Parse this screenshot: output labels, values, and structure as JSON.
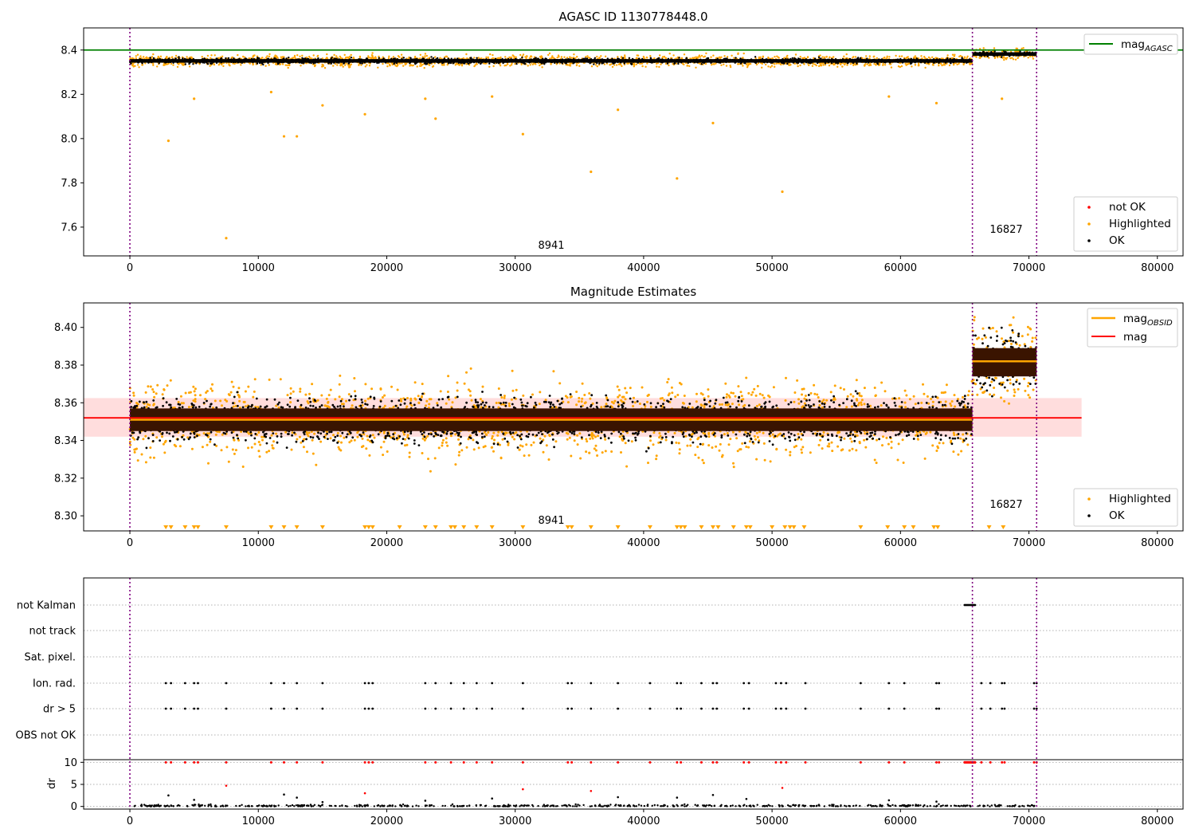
{
  "chart_data": [
    {
      "type": "scatter",
      "title": "AGASC ID 1130778448.0",
      "xlim": [
        -3600,
        82000
      ],
      "ylim": [
        7.47,
        8.5
      ],
      "xticks": [
        0,
        10000,
        20000,
        30000,
        40000,
        50000,
        60000,
        70000,
        80000
      ],
      "yticks": [
        7.6,
        7.8,
        8.0,
        8.2,
        8.4
      ],
      "vlines": [
        0,
        65600,
        70600
      ],
      "mag_agasc": 8.4,
      "segments": [
        {
          "label": "8941",
          "x_start": 0,
          "x_end": 65600,
          "mean": 8.351
        },
        {
          "label": "16827",
          "x_start": 65600,
          "x_end": 70600,
          "mean": 8.382
        }
      ],
      "highlighted_outliers": [
        {
          "x": 3000,
          "y": 7.99
        },
        {
          "x": 5000,
          "y": 8.18
        },
        {
          "x": 7500,
          "y": 7.55
        },
        {
          "x": 11000,
          "y": 8.21
        },
        {
          "x": 12000,
          "y": 8.01
        },
        {
          "x": 13000,
          "y": 8.01
        },
        {
          "x": 15000,
          "y": 8.15
        },
        {
          "x": 18300,
          "y": 8.11
        },
        {
          "x": 23000,
          "y": 8.18
        },
        {
          "x": 23800,
          "y": 8.09
        },
        {
          "x": 28200,
          "y": 8.19
        },
        {
          "x": 30600,
          "y": 8.02
        },
        {
          "x": 35900,
          "y": 7.85
        },
        {
          "x": 38000,
          "y": 8.13
        },
        {
          "x": 42600,
          "y": 7.82
        },
        {
          "x": 45400,
          "y": 8.07
        },
        {
          "x": 50800,
          "y": 7.76
        },
        {
          "x": 59100,
          "y": 8.19
        },
        {
          "x": 62800,
          "y": 8.16
        },
        {
          "x": 67900,
          "y": 8.18
        }
      ],
      "legend": {
        "lines": [
          {
            "label": "mag",
            "sub": "AGASC",
            "color": "#008000"
          }
        ],
        "markers": [
          {
            "label": "not OK",
            "color": "#ff0000"
          },
          {
            "label": "Highlighted",
            "color": "#ffa500"
          },
          {
            "label": "OK",
            "color": "#000000"
          }
        ]
      }
    },
    {
      "type": "scatter",
      "title": "Magnitude Estimates",
      "xlim": [
        -3600,
        82000
      ],
      "ylim": [
        8.292,
        8.413
      ],
      "xticks": [
        0,
        10000,
        20000,
        30000,
        40000,
        50000,
        60000,
        70000,
        80000
      ],
      "yticks": [
        8.3,
        8.32,
        8.34,
        8.36,
        8.38,
        8.4
      ],
      "ytick_labels": [
        "8.30",
        "8.32",
        "8.34",
        "8.36",
        "8.38",
        "8.40"
      ],
      "vlines": [
        0,
        65600,
        70600
      ],
      "mag": 8.352,
      "mag_band": [
        8.342,
        8.3625
      ],
      "band_x": [
        -3600,
        74100
      ],
      "segments": [
        {
          "label": "8941",
          "x_start": 0,
          "x_end": 65600,
          "mean": 8.351,
          "band": [
            8.345,
            8.357
          ]
        },
        {
          "label": "16827",
          "x_start": 65600,
          "x_end": 70600,
          "mean": 8.382,
          "band": [
            8.374,
            8.389
          ]
        }
      ],
      "clipped_low_x": [
        2800,
        3200,
        4300,
        5000,
        5300,
        7500,
        11000,
        12000,
        13000,
        15000,
        18300,
        18600,
        18900,
        21000,
        23000,
        23800,
        25000,
        25300,
        26000,
        27000,
        28200,
        30600,
        34100,
        34400,
        35900,
        38000,
        40500,
        42600,
        42900,
        43200,
        44500,
        45400,
        45800,
        47000,
        48000,
        48300,
        50000,
        51000,
        51400,
        51700,
        52500,
        56900,
        59000,
        60300,
        61000,
        62600,
        62900,
        66900,
        68000
      ],
      "legend": {
        "lines": [
          {
            "label": "mag",
            "sub": "OBSID",
            "color": "#ffa500"
          },
          {
            "label": "mag",
            "sub": "",
            "color": "#ff0000"
          }
        ],
        "markers": [
          {
            "label": "Highlighted",
            "color": "#ffa500"
          },
          {
            "label": "OK",
            "color": "#000000"
          }
        ]
      }
    },
    {
      "type": "scatter",
      "title": "",
      "xlim": [
        -3600,
        82000
      ],
      "xticks": [
        0,
        10000,
        20000,
        30000,
        40000,
        50000,
        60000,
        70000,
        80000
      ],
      "vlines": [
        0,
        65600,
        70600
      ],
      "flag_rows": [
        "not Kalman",
        "not track",
        "Sat. pixel.",
        "Ion. rad.",
        "dr > 5",
        "OBS not OK"
      ],
      "flag_events": {
        "not Kalman": [
          65000,
          65100,
          65200,
          65300,
          65400,
          65500,
          65600,
          65700,
          65800
        ],
        "Ion. rad.": [
          2800,
          3200,
          4300,
          5000,
          5300,
          7500,
          11000,
          12000,
          13000,
          15000,
          18300,
          18600,
          18900,
          23000,
          23800,
          25000,
          26000,
          27000,
          28200,
          30600,
          34100,
          34400,
          35900,
          38000,
          40500,
          42600,
          42900,
          44500,
          45400,
          45700,
          47800,
          48200,
          50300,
          50700,
          51100,
          52600,
          56900,
          59100,
          60300,
          62800,
          63000,
          66300,
          67000,
          67900,
          68100,
          70400,
          70600
        ],
        "dr > 5": [
          2800,
          3200,
          4300,
          5000,
          5300,
          7500,
          11000,
          12000,
          13000,
          15000,
          18300,
          18600,
          18900,
          23000,
          23800,
          25000,
          26000,
          27000,
          28200,
          30600,
          34100,
          34400,
          35900,
          38000,
          40500,
          42600,
          42900,
          44500,
          45400,
          45700,
          47800,
          48200,
          50300,
          50700,
          51100,
          52600,
          56900,
          59100,
          60300,
          62800,
          63000,
          66300,
          67000,
          67900,
          68100,
          70400,
          70600
        ]
      },
      "dr_ylim": [
        -0.6,
        10.6
      ],
      "dr_ylabel": "dr",
      "dr_yticks": [
        0,
        5,
        10
      ],
      "dr_clip": 10,
      "dr_high": [
        {
          "x": 7500,
          "y": 4.7
        },
        {
          "x": 30600,
          "y": 3.9
        },
        {
          "x": 35900,
          "y": 3.5
        },
        {
          "x": 50800,
          "y": 4.2
        },
        {
          "x": 18300,
          "y": 3.0
        }
      ],
      "dr_mid": [
        {
          "x": 3000,
          "y": 2.5
        },
        {
          "x": 5000,
          "y": 1.5
        },
        {
          "x": 12000,
          "y": 2.7
        },
        {
          "x": 13000,
          "y": 2.0
        },
        {
          "x": 15000,
          "y": 1.0
        },
        {
          "x": 23000,
          "y": 1.3
        },
        {
          "x": 28200,
          "y": 1.8
        },
        {
          "x": 38000,
          "y": 2.1
        },
        {
          "x": 42600,
          "y": 2.0
        },
        {
          "x": 45400,
          "y": 2.6
        },
        {
          "x": 48000,
          "y": 1.7
        },
        {
          "x": 59100,
          "y": 1.4
        },
        {
          "x": 62800,
          "y": 1.1
        }
      ]
    }
  ]
}
